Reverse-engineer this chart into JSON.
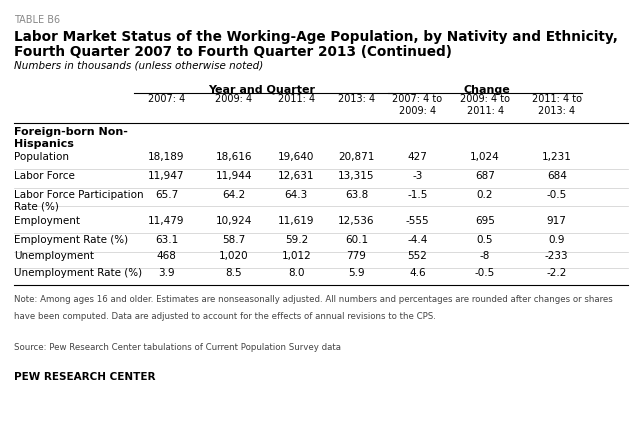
{
  "table_label": "TABLE B6",
  "title_line1": "Labor Market Status of the Working-Age Population, by Nativity and Ethnicity,",
  "title_line2": "Fourth Quarter 2007 to Fourth Quarter 2013 (Continued)",
  "subtitle": "Numbers in thousands (unless otherwise noted)",
  "col_group1_label": "Year and Quarter",
  "col_group2_label": "Change",
  "col_headers": [
    "2007: 4",
    "2009: 4",
    "2011: 4",
    "2013: 4",
    "2007: 4 to\n2009: 4",
    "2009: 4 to\n2011: 4",
    "2011: 4 to\n2013: 4"
  ],
  "section_label": "Foreign-born Non-\nHispanics",
  "row_labels": [
    "Population",
    "Labor Force",
    "Labor Force Participation\nRate (%)",
    "Employment",
    "Employment Rate (%)",
    "Unemployment",
    "Unemployment Rate (%)"
  ],
  "data": [
    [
      "18,189",
      "18,616",
      "19,640",
      "20,871",
      "427",
      "1,024",
      "1,231"
    ],
    [
      "11,947",
      "11,944",
      "12,631",
      "13,315",
      "-3",
      "687",
      "684"
    ],
    [
      "65.7",
      "64.2",
      "64.3",
      "63.8",
      "-1.5",
      "0.2",
      "-0.5"
    ],
    [
      "11,479",
      "10,924",
      "11,619",
      "12,536",
      "-555",
      "695",
      "917"
    ],
    [
      "63.1",
      "58.7",
      "59.2",
      "60.1",
      "-4.4",
      "0.5",
      "0.9"
    ],
    [
      "468",
      "1,020",
      "1,012",
      "779",
      "552",
      "-8",
      "-233"
    ],
    [
      "3.9",
      "8.5",
      "8.0",
      "5.9",
      "4.6",
      "-0.5",
      "-2.2"
    ]
  ],
  "note_line1": "Note: Among ages 16 and older. Estimates are nonseasonally adjusted. All numbers and percentages are rounded after changes or shares",
  "note_line2": "have been computed. Data are adjusted to account for the effects of annual revisions to the CPS.",
  "source": "Source: Pew Research Center tabulations of Current Population Survey data",
  "branding": "PEW RESEARCH CENTER",
  "bg_color": "#FFFFFF",
  "text_color": "#000000",
  "gray_text": "#666666",
  "sep_color": "#BBBBBB",
  "line_color": "#000000"
}
